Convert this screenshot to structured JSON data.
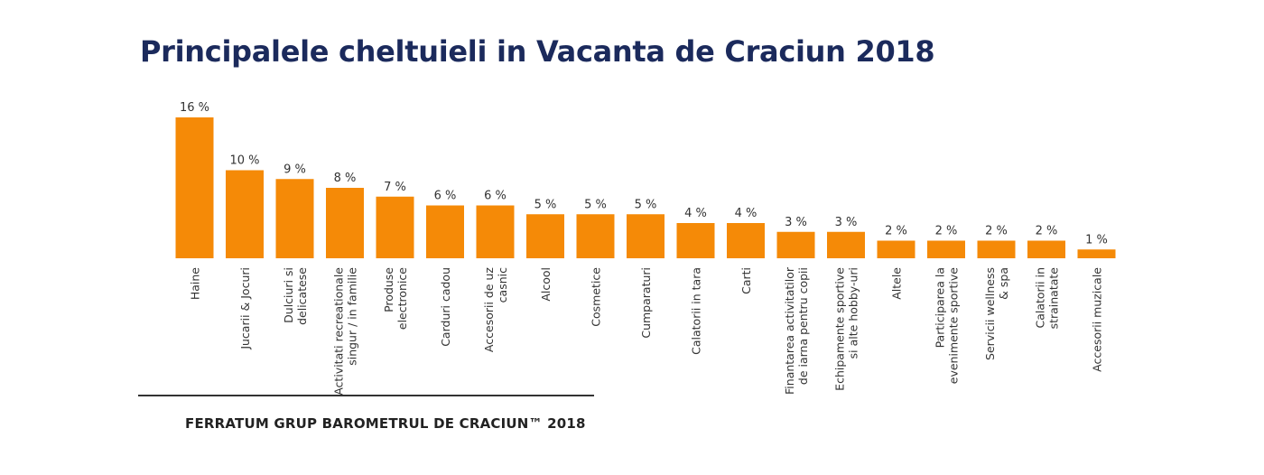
{
  "chart_data": {
    "type": "bar",
    "title": "Principalele cheltuieli in Vacanta de Craciun 2018",
    "source": "FERRATUM GRUP BAROMETRUL DE CRACIUN™ 2018",
    "bar_color": "#f58a07",
    "value_suffix": " %",
    "categories": [
      [
        "Haine"
      ],
      [
        "Jucarii & Jocuri"
      ],
      [
        "Dulciuri si",
        "delicatese"
      ],
      [
        "Activitati recreationale",
        "singur / in familie"
      ],
      [
        "Produse",
        "electronice"
      ],
      [
        "Carduri cadou"
      ],
      [
        "Accesorii de uz",
        "casnic"
      ],
      [
        "Alcool"
      ],
      [
        "Cosmetice"
      ],
      [
        "Cumparaturi"
      ],
      [
        "Calatorii in tara"
      ],
      [
        "Carti"
      ],
      [
        "Finantarea activitatilor",
        "de iarna pentru copii"
      ],
      [
        "Echipamente sportive",
        "si alte hobby-uri"
      ],
      [
        "Altele"
      ],
      [
        "Participarea la",
        "evenimente sportive"
      ],
      [
        "Servicii wellness",
        "& spa"
      ],
      [
        "Calatorii in",
        "strainatate"
      ],
      [
        "Accesorii muzicale"
      ]
    ],
    "values": [
      16,
      10,
      9,
      8,
      7,
      6,
      6,
      5,
      5,
      5,
      4,
      4,
      3,
      3,
      2,
      2,
      2,
      2,
      1
    ]
  }
}
